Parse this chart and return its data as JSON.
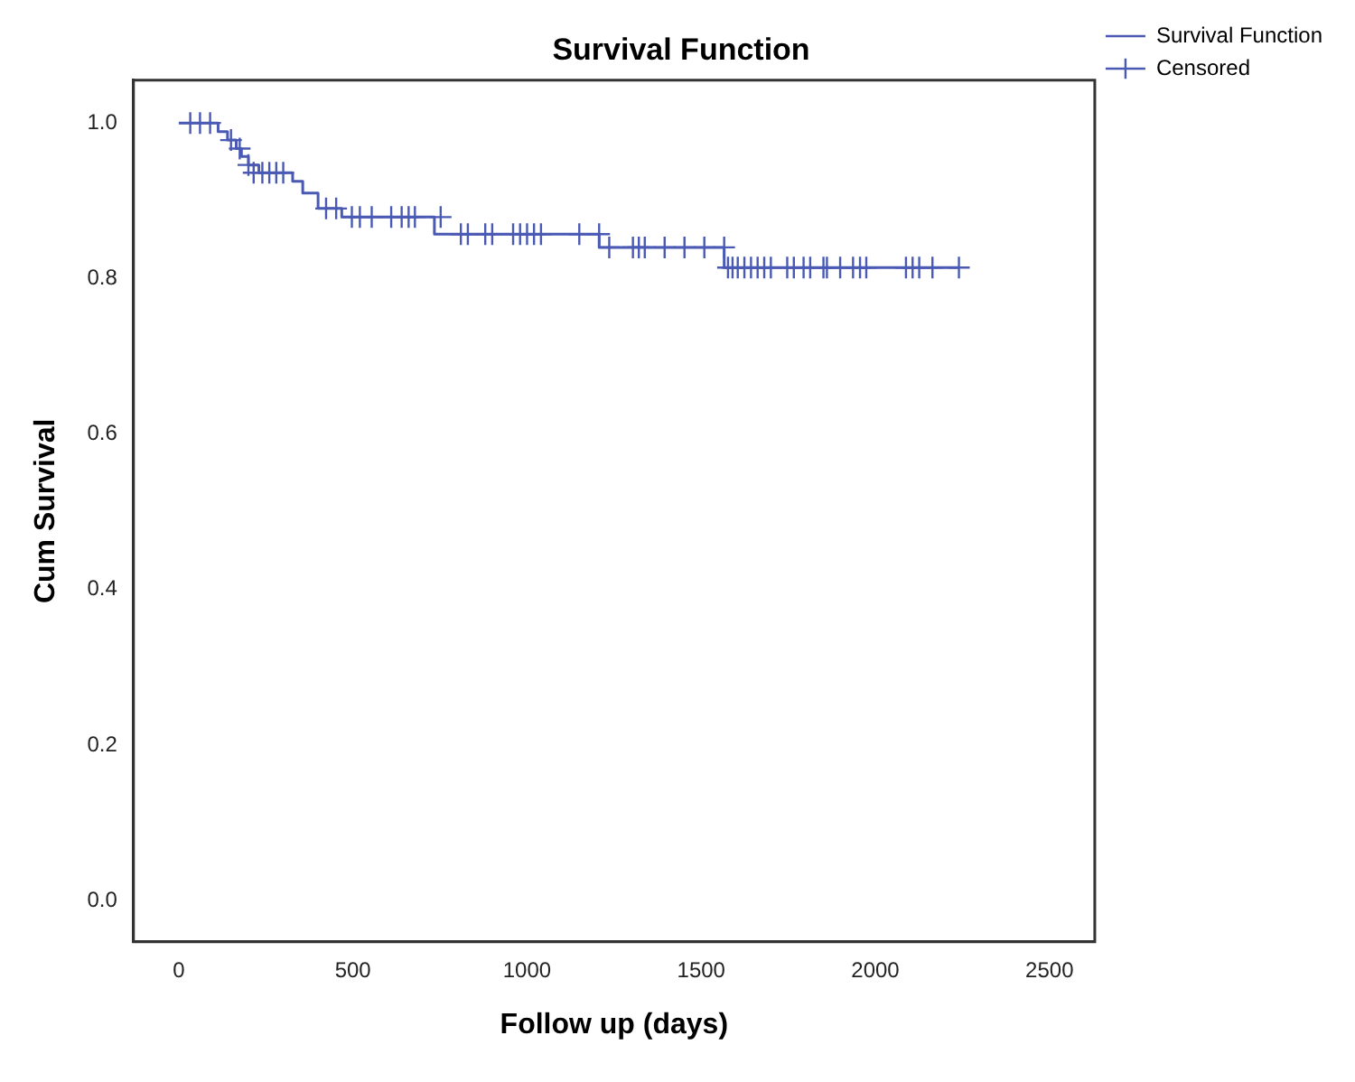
{
  "chart_data": {
    "type": "step",
    "title": "Survival Function",
    "xlabel": "Follow up (days)",
    "ylabel": "Cum Survival",
    "xlim": [
      -130,
      2630
    ],
    "xticks": [
      0,
      500,
      1000,
      1500,
      2000,
      2500
    ],
    "ylim": [
      -0.053,
      1.055
    ],
    "yticks": [
      {
        "value": 0,
        "label": "0.0"
      },
      {
        "value": 0.2,
        "label": "0.2"
      },
      {
        "value": 0.4,
        "label": "0.4"
      },
      {
        "value": 0.6,
        "label": "0.6"
      },
      {
        "value": 0.8,
        "label": "0.8"
      },
      {
        "value": 1,
        "label": "1.0"
      }
    ],
    "grid": false,
    "legend": "top right",
    "series": [
      {
        "name": "Survival Function",
        "color": "#4a5ab4",
        "marker": "none",
        "x": [
          0,
          113,
          140,
          165,
          180,
          200,
          230,
          327,
          356,
          400,
          468,
          734,
          1207,
          1566,
          2240
        ],
        "values": [
          1,
          0.989,
          0.978,
          0.967,
          0.957,
          0.946,
          0.936,
          0.925,
          0.91,
          0.89,
          0.879,
          0.857,
          0.84,
          0.814,
          0.814
        ]
      },
      {
        "name": "Censored",
        "type": "scatter",
        "color": "#4a5ab4",
        "marker": "cross",
        "x": [
          33,
          61,
          90,
          150,
          175,
          200,
          215,
          240,
          260,
          280,
          300,
          423,
          452,
          497,
          520,
          554,
          610,
          640,
          660,
          678,
          752,
          810,
          830,
          880,
          900,
          960,
          980,
          1000,
          1020,
          1040,
          1150,
          1207,
          1236,
          1304,
          1321,
          1338,
          1395,
          1452,
          1509,
          1566,
          1577,
          1590,
          1605,
          1624,
          1643,
          1662,
          1681,
          1700,
          1747,
          1766,
          1794,
          1813,
          1851,
          1861,
          1899,
          1936,
          1956,
          1974,
          2088,
          2107,
          2126,
          2164,
          2240
        ],
        "values": [
          1,
          1,
          1,
          0.978,
          0.967,
          0.946,
          0.936,
          0.936,
          0.936,
          0.936,
          0.936,
          0.89,
          0.89,
          0.879,
          0.879,
          0.879,
          0.879,
          0.879,
          0.879,
          0.879,
          0.879,
          0.857,
          0.857,
          0.857,
          0.857,
          0.857,
          0.857,
          0.857,
          0.857,
          0.857,
          0.857,
          0.857,
          0.84,
          0.84,
          0.84,
          0.84,
          0.84,
          0.84,
          0.84,
          0.84,
          0.814,
          0.814,
          0.814,
          0.814,
          0.814,
          0.814,
          0.814,
          0.814,
          0.814,
          0.814,
          0.814,
          0.814,
          0.814,
          0.814,
          0.814,
          0.814,
          0.814,
          0.814,
          0.814,
          0.814,
          0.814,
          0.814,
          0.814
        ]
      }
    ]
  }
}
